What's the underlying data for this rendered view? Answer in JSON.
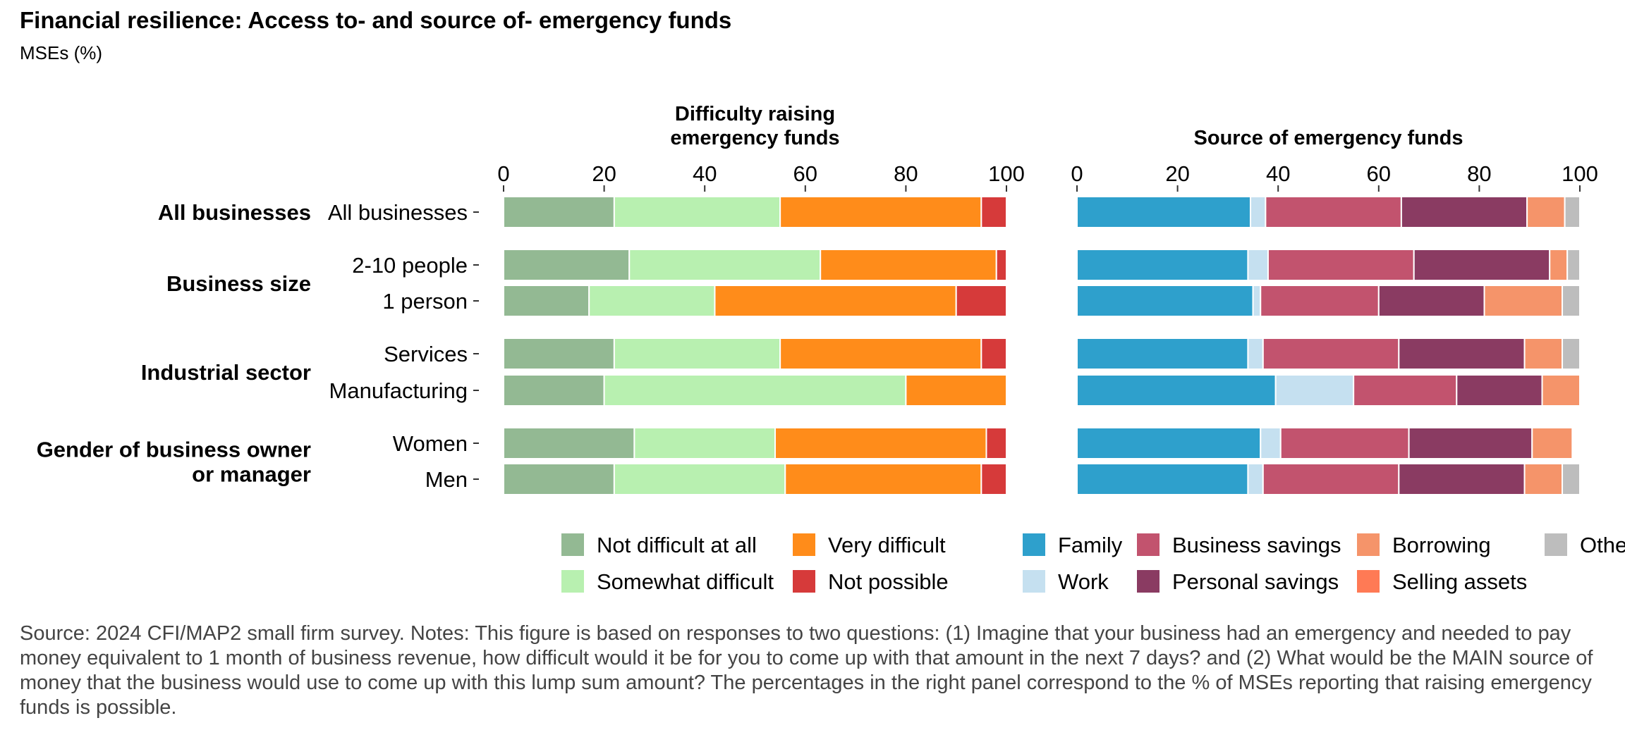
{
  "title": "Financial resilience: Access to- and source of- emergency funds",
  "subtitle": "MSEs (%)",
  "note": "Source: 2024 CFI/MAP2 small firm survey. Notes: This figure is based on responses to two questions: (1) Imagine that your business had an emergency and needed to pay money equivalent to 1 month of business revenue, how difficult would it be for you to come up with that amount in the next 7 days? and (2) What would be the MAIN source of money that the business would use to come up with this lump sum amount? The percentages in the right panel correspond to the % of MSEs reporting that raising emergency funds is possible.",
  "colors": {
    "Not difficult at all": "#93b993",
    "Somewhat difficult": "#b8f0b0",
    "Very difficult": "#ff8c1a",
    "Not possible": "#d63a3a",
    "Family": "#2ea0cc",
    "Work": "#c5e0f0",
    "Business savings": "#c2536e",
    "Personal savings": "#8a3b62",
    "Borrowing": "#f5946a",
    "Selling assets": "#ff7a55",
    "Other": "#bdbdbd"
  },
  "groups": [
    {
      "label": [
        "All businesses"
      ],
      "rows": [
        "All businesses"
      ]
    },
    {
      "label": [
        "Business size"
      ],
      "rows": [
        "2-10 people",
        "1 person"
      ]
    },
    {
      "label": [
        "Industrial sector"
      ],
      "rows": [
        "Services",
        "Manufacturing"
      ]
    },
    {
      "label": [
        "Gender of business owner",
        "or manager"
      ],
      "rows": [
        "Women",
        "Men"
      ]
    }
  ],
  "chart_data": [
    {
      "type": "bar",
      "orientation": "horizontal",
      "stacked": true,
      "title": "Difficulty raising emergency funds",
      "title_lines": [
        "Difficulty raising",
        "emergency funds"
      ],
      "xlim": [
        0,
        100
      ],
      "ticks": [
        0,
        20,
        40,
        60,
        80,
        100
      ],
      "categories": [
        "All businesses",
        "2-10 people",
        "1 person",
        "Services",
        "Manufacturing",
        "Women",
        "Men"
      ],
      "series": [
        {
          "name": "Not difficult at all",
          "values": [
            22,
            25,
            17,
            22,
            20,
            26,
            22
          ]
        },
        {
          "name": "Somewhat difficult",
          "values": [
            33,
            38,
            25,
            33,
            60,
            28,
            34
          ]
        },
        {
          "name": "Very difficult",
          "values": [
            40,
            35,
            48,
            40,
            20,
            42,
            39
          ]
        },
        {
          "name": "Not possible",
          "values": [
            5,
            2,
            10,
            5,
            0,
            4,
            5
          ]
        }
      ],
      "legend": {
        "placement": "bottom",
        "columns": [
          [
            "Not difficult at all",
            "Somewhat difficult"
          ],
          [
            "Very difficult",
            "Not possible"
          ]
        ]
      }
    },
    {
      "type": "bar",
      "orientation": "horizontal",
      "stacked": true,
      "title": "Source of emergency funds",
      "title_lines": [
        "Source of emergency funds"
      ],
      "xlim": [
        0,
        100
      ],
      "ticks": [
        0,
        20,
        40,
        60,
        80,
        100
      ],
      "categories": [
        "All businesses",
        "2-10 people",
        "1 person",
        "Services",
        "Manufacturing",
        "Women",
        "Men"
      ],
      "series": [
        {
          "name": "Family",
          "values": [
            34.5,
            34,
            35,
            34,
            39.5,
            36.5,
            34
          ]
        },
        {
          "name": "Work",
          "values": [
            3,
            4,
            1.5,
            3,
            15.5,
            4,
            3
          ]
        },
        {
          "name": "Business savings",
          "values": [
            27,
            29,
            23.5,
            27,
            20.5,
            25.5,
            27
          ]
        },
        {
          "name": "Personal savings",
          "values": [
            25,
            27,
            21,
            25,
            17,
            24.5,
            25
          ]
        },
        {
          "name": "Borrowing",
          "values": [
            7.5,
            3.5,
            15.5,
            7.5,
            7.5,
            8,
            7.5
          ]
        },
        {
          "name": "Selling assets",
          "values": [
            0,
            0,
            0,
            0,
            0,
            0,
            0
          ]
        },
        {
          "name": "Other",
          "values": [
            3,
            2.5,
            3.5,
            3.5,
            0,
            0,
            3.5
          ]
        }
      ],
      "legend": {
        "placement": "bottom",
        "columns": [
          [
            "Family",
            "Work"
          ],
          [
            "Business savings",
            "Personal savings"
          ],
          [
            "Borrowing",
            "Selling assets"
          ],
          [
            "Other"
          ]
        ]
      }
    }
  ]
}
